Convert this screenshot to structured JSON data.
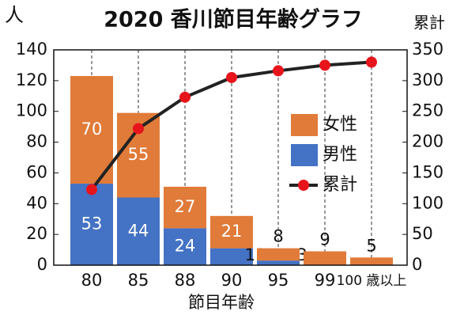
{
  "chart_data": {
    "type": "bar",
    "title": "2020 香川節目年齢グラフ",
    "y_label": "人",
    "y2_label": "累計",
    "x_label": "節目年齢",
    "categories": [
      "80",
      "85",
      "88",
      "90",
      "95",
      "99",
      "100 歳以上"
    ],
    "stacked": true,
    "series": [
      {
        "name": "男性",
        "color": "#4472c4",
        "values": [
          53,
          44,
          24,
          11,
          3,
          null,
          null
        ]
      },
      {
        "name": "女性",
        "color": "#e07b39",
        "values": [
          70,
          55,
          27,
          21,
          8,
          9,
          5
        ]
      },
      {
        "name": "累計",
        "color": "#e8141c",
        "line_color": "#222222",
        "type": "line",
        "axis": "y2",
        "values": [
          123,
          222,
          273,
          305,
          316,
          325,
          330
        ]
      }
    ],
    "ylim": [
      0,
      140
    ],
    "yticks": [
      0,
      20,
      40,
      60,
      80,
      100,
      120,
      140
    ],
    "y2lim": [
      0,
      350
    ],
    "y2ticks": [
      0,
      50,
      100,
      150,
      200,
      250,
      300,
      350
    ],
    "grid": true
  }
}
